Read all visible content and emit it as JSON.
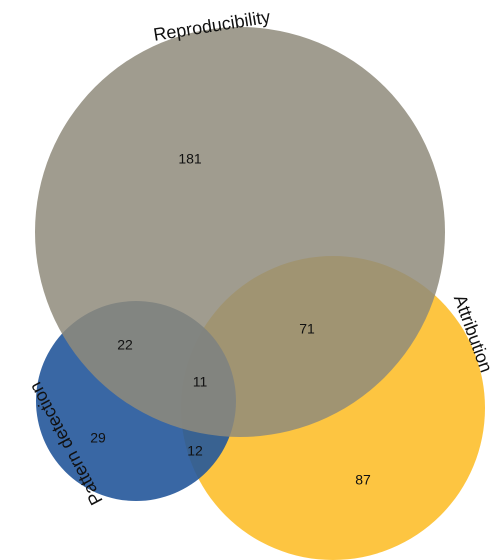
{
  "chart_data": {
    "type": "venn",
    "sets": [
      {
        "name": "Reproducibility",
        "color": "#8f8b7b"
      },
      {
        "name": "Attribution",
        "color": "#fcb817"
      },
      {
        "name": "Pattern detection",
        "color": "#24579a"
      }
    ],
    "values": [
      181,
      87,
      29,
      71,
      22,
      12,
      11
    ]
  }
}
